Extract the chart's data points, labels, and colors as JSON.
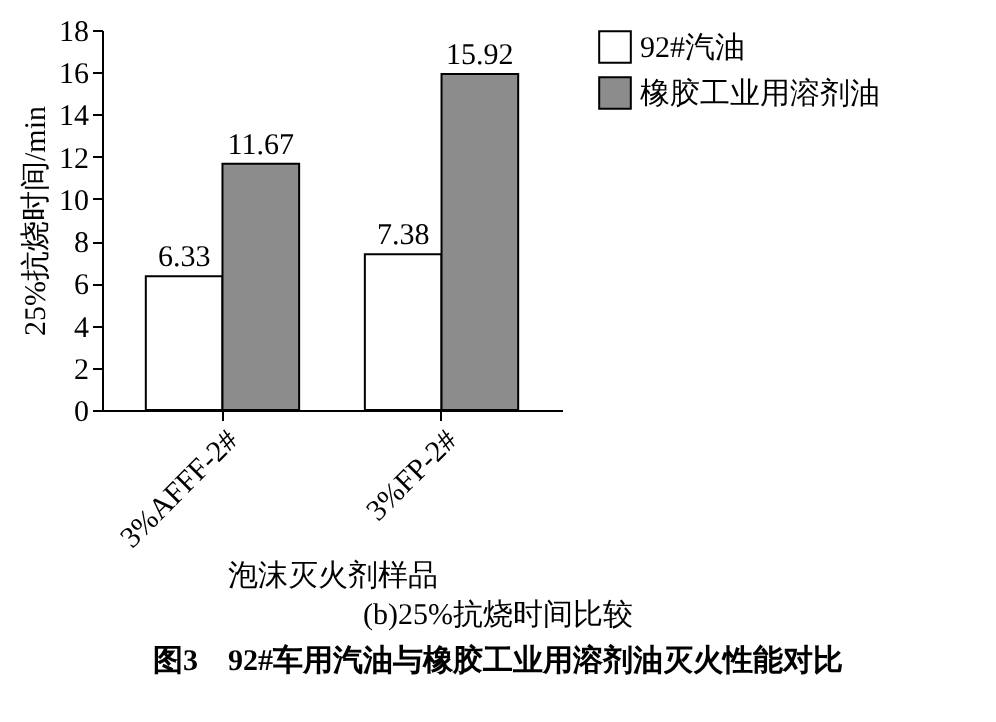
{
  "chart_data": {
    "type": "bar",
    "title": "图3　92#车用汽油与橡胶工业用溶剂油灭火性能对比",
    "subtitle": "(b)25%抗烧时间比较",
    "xlabel": "泡沫灭火剂样品",
    "ylabel": "25%抗烧时间/min",
    "categories": [
      "3%AFFF-2#",
      "3%FP-2#"
    ],
    "series": [
      {
        "name": "92#汽油",
        "color": "#ffffff",
        "values": [
          6.33,
          7.38
        ]
      },
      {
        "name": "橡胶工业用溶剂油",
        "color": "#8c8c8c",
        "values": [
          11.67,
          15.92
        ]
      }
    ],
    "ylim": [
      0,
      18
    ],
    "yticks": [
      0,
      2,
      4,
      6,
      8,
      10,
      12,
      14,
      16,
      18
    ],
    "data_labels": true,
    "legend": "top right",
    "grid": false
  }
}
